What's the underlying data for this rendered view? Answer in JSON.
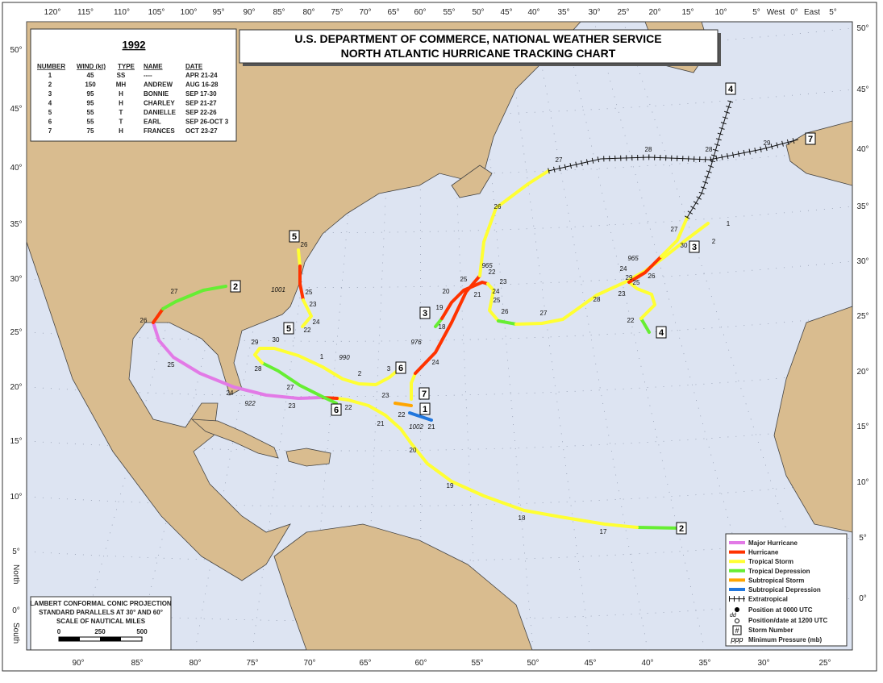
{
  "title": {
    "line1": "U.S. DEPARTMENT OF COMMERCE, NATIONAL WEATHER SERVICE",
    "line2": "NORTH ATLANTIC HURRICANE TRACKING CHART"
  },
  "season": {
    "year": "1992",
    "columns": [
      "NUMBER",
      "WIND (kt)",
      "TYPE",
      "NAME",
      "DATE"
    ],
    "rows": [
      [
        "1",
        "45",
        "SS",
        "----",
        "APR 21-24"
      ],
      [
        "2",
        "150",
        "MH",
        "ANDREW",
        "AUG 16-28"
      ],
      [
        "3",
        "95",
        "H",
        "BONNIE",
        "SEP 17-30"
      ],
      [
        "4",
        "95",
        "H",
        "CHARLEY",
        "SEP 21-27"
      ],
      [
        "5",
        "55",
        "T",
        "DANIELLE",
        "SEP 22-26"
      ],
      [
        "6",
        "55",
        "T",
        "EARL",
        "SEP 26-OCT 3"
      ],
      [
        "7",
        "75",
        "H",
        "FRANCES",
        "OCT 23-27"
      ]
    ]
  },
  "axes": {
    "top": [
      "120°",
      "115°",
      "110°",
      "105°",
      "100°",
      "95°",
      "90°",
      "85°",
      "80°",
      "75°",
      "70°",
      "65°",
      "60°",
      "55°",
      "50°",
      "45°",
      "40°",
      "35°",
      "30°",
      "25°",
      "20°",
      "15°",
      "10°",
      "5°",
      "West",
      "0°",
      "East",
      "5°"
    ],
    "bottom": [
      "90°",
      "85°",
      "80°",
      "75°",
      "70°",
      "65°",
      "60°",
      "55°",
      "50°",
      "45°",
      "40°",
      "35°",
      "30°",
      "25°"
    ],
    "left": [
      "50°",
      "45°",
      "40°",
      "35°",
      "30°",
      "25°",
      "20°",
      "15°",
      "10°",
      "5°",
      "0°"
    ],
    "right": [
      "50°",
      "45°",
      "40°",
      "35°",
      "30°",
      "25°",
      "20°",
      "15°",
      "10°",
      "5°",
      "0°"
    ],
    "north": "North",
    "south": "South"
  },
  "legend": {
    "entries": [
      "Major Hurricane",
      "Hurricane",
      "Tropical Storm",
      "Tropical Depression",
      "Subtropical Storm",
      "Subtropical Depression",
      "Extratropical"
    ],
    "position_0000": "Position at 0000 UTC",
    "position_1200_symbol": "dd",
    "position_1200": "Position/date at 1200 UTC",
    "storm_number_symbol": "#",
    "storm_number": "Storm Number",
    "pressure_symbol": "ppp",
    "pressure": "Minimum Pressure (mb)"
  },
  "projection": {
    "line1": "LAMBERT CONFORMAL CONIC PROJECTION",
    "line2": "STANDARD PARALLELS AT 30° AND 60°",
    "line3": "SCALE OF NAUTICAL MILES",
    "scale": [
      "0",
      "250",
      "500"
    ]
  },
  "storm_markers": [
    "1",
    "2",
    "2",
    "3",
    "3",
    "4",
    "4",
    "5",
    "5",
    "6",
    "6",
    "7",
    "7"
  ],
  "track_labels": [
    "17",
    "18",
    "19",
    "20",
    "21",
    "22",
    "23",
    "24",
    "922",
    "25",
    "26",
    "27",
    "18",
    "19",
    "20",
    "21",
    "22",
    "23",
    "24",
    "25",
    "26",
    "27",
    "28",
    "29",
    "30",
    "1",
    "2",
    "965",
    "22",
    "23",
    "24",
    "25",
    "26",
    "27",
    "28",
    "965",
    "22",
    "23",
    "24",
    "25",
    "26",
    "1001",
    "29",
    "30",
    "1",
    "990",
    "2",
    "3",
    "28",
    "27",
    "24",
    "976",
    "25",
    "26",
    "27",
    "28",
    "29",
    "21",
    "22",
    "23",
    "1002"
  ]
}
